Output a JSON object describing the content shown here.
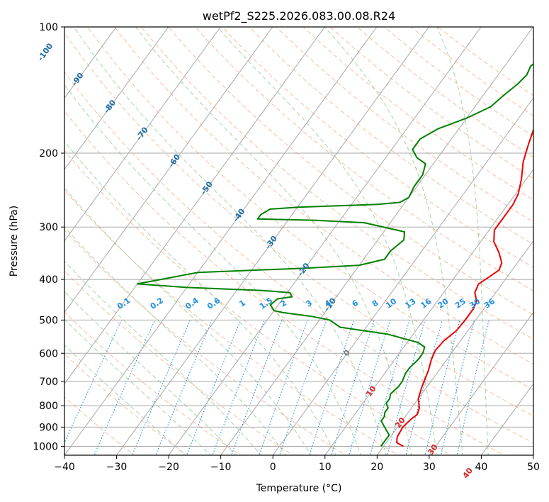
{
  "chart_data": {
    "type": "line",
    "title": "wetPf2_S225.2026.083.00.08.R24",
    "xlabel": "Temperature (°C)",
    "ylabel": "Pressure (hPa)",
    "xlim": [
      -40,
      50
    ],
    "ylim": [
      1050,
      100
    ],
    "y_scale": "log",
    "grid": true,
    "x_ticks": [
      -40,
      -30,
      -20,
      -10,
      0,
      10,
      20,
      30,
      40,
      50
    ],
    "y_ticks": [
      100,
      200,
      300,
      400,
      500,
      600,
      700,
      800,
      900,
      1000
    ],
    "x_tick_labels": [
      "−40",
      "−30",
      "−20",
      "−10",
      "0",
      "10",
      "20",
      "30",
      "40",
      "50"
    ],
    "y_tick_labels": [
      "100",
      "200",
      "300",
      "400",
      "500",
      "600",
      "700",
      "800",
      "900",
      "1000"
    ],
    "isotherm_labels": [
      "-100",
      "-90",
      "-80",
      "-70",
      "-60",
      "-50",
      "-40",
      "-30",
      "-20",
      "-10",
      "0",
      "10",
      "20",
      "30",
      "40"
    ],
    "mixing_ratio_labels": [
      "0.1",
      "0.2",
      "0.4",
      "0.6",
      "1",
      "1.5",
      "2",
      "3",
      "4",
      "6",
      "8",
      "10",
      "13",
      "16",
      "20",
      "25",
      "30",
      "36"
    ],
    "series": [
      {
        "color": "#ee0000",
        "points": [
          [
            23.8,
            1000
          ],
          [
            22.0,
            980
          ],
          [
            21.3,
            950
          ],
          [
            21.0,
            900
          ],
          [
            21.5,
            860
          ],
          [
            22.0,
            840
          ],
          [
            21.5,
            810
          ],
          [
            20.0,
            770
          ],
          [
            19.0,
            720
          ],
          [
            18.5,
            690
          ],
          [
            18.0,
            660
          ],
          [
            17.0,
            620
          ],
          [
            16.5,
            590
          ],
          [
            16.8,
            560
          ],
          [
            17.8,
            530
          ],
          [
            18.0,
            500
          ],
          [
            18.0,
            470
          ],
          [
            17.5,
            450
          ],
          [
            16.0,
            430
          ],
          [
            15.5,
            410
          ],
          [
            16.5,
            395
          ],
          [
            17.5,
            380
          ],
          [
            17.0,
            365
          ],
          [
            15.0,
            345
          ],
          [
            12.5,
            325
          ],
          [
            11.0,
            305
          ],
          [
            11.0,
            285
          ],
          [
            11.0,
            265
          ],
          [
            10.5,
            250
          ],
          [
            9.0,
            230
          ],
          [
            7.0,
            210
          ],
          [
            5.5,
            190
          ],
          [
            4.0,
            170
          ],
          [
            2.0,
            150
          ],
          [
            0.0,
            130
          ],
          [
            -2.0,
            120
          ],
          [
            -3.0,
            112
          ],
          [
            -2.0,
            107
          ],
          [
            1.0,
            100
          ]
        ],
        "name": ""
      },
      {
        "color": "#008000",
        "points": [
          [
            19.5,
            1000
          ],
          [
            19.5,
            970
          ],
          [
            19.5,
            940
          ],
          [
            17.5,
            900
          ],
          [
            16.0,
            870
          ],
          [
            16.0,
            850
          ],
          [
            15.5,
            830
          ],
          [
            15.5,
            810
          ],
          [
            14.5,
            790
          ],
          [
            14.5,
            770
          ],
          [
            14.0,
            750
          ],
          [
            14.5,
            720
          ],
          [
            14.5,
            700
          ],
          [
            14.0,
            670
          ],
          [
            14.0,
            650
          ],
          [
            14.5,
            620
          ],
          [
            14.5,
            600
          ],
          [
            14.0,
            580
          ],
          [
            12.0,
            565
          ],
          [
            5.0,
            540
          ],
          [
            -5.0,
            520
          ],
          [
            -8.0,
            500
          ],
          [
            -12.0,
            490
          ],
          [
            -18.0,
            480
          ],
          [
            -20.0,
            475
          ],
          [
            -21.5,
            460
          ],
          [
            -21.0,
            445
          ],
          [
            -18.5,
            440
          ],
          [
            -19.5,
            430
          ],
          [
            -25.0,
            425
          ],
          [
            -40.0,
            418
          ],
          [
            -50.0,
            410
          ],
          [
            -40.0,
            385
          ],
          [
            -20.0,
            376
          ],
          [
            -10.0,
            370
          ],
          [
            -6.0,
            358
          ],
          [
            -6.0,
            342
          ],
          [
            -5.0,
            322
          ],
          [
            -6.0,
            308
          ],
          [
            -15.0,
            293
          ],
          [
            -25.0,
            289
          ],
          [
            -36.0,
            287
          ],
          [
            -36.0,
            280
          ],
          [
            -35.0,
            272
          ],
          [
            -30.0,
            269
          ],
          [
            -15.0,
            265
          ],
          [
            -11.0,
            262
          ],
          [
            -10.0,
            255
          ],
          [
            -10.5,
            240
          ],
          [
            -10.5,
            225
          ],
          [
            -11.5,
            212
          ],
          [
            -14.0,
            205
          ],
          [
            -16.0,
            196
          ],
          [
            -16.0,
            185
          ],
          [
            -14.0,
            175
          ],
          [
            -10.0,
            165
          ],
          [
            -7.0,
            155
          ],
          [
            -6.0,
            145
          ],
          [
            -5.0,
            137
          ],
          [
            -4.5,
            130
          ],
          [
            -5.0,
            124
          ],
          [
            -4.0,
            118
          ],
          [
            -2.0,
            113
          ],
          [
            0.0,
            108
          ],
          [
            1.0,
            104
          ],
          [
            2.0,
            100
          ]
        ],
        "name": ""
      }
    ]
  },
  "colors": {
    "temperature": "#ee0000",
    "dewpoint": "#008000",
    "isotherm_grid": "#a9a9a9",
    "dry_adiabat": "#f4a582",
    "moist_adiabat": "#8fc98f",
    "mixing_ratio": "#1f8ee0",
    "isotherm_label": "#1f6fa8",
    "isotherm_label_zero": "#808080",
    "isotherm_label_warm": "#d62728"
  }
}
